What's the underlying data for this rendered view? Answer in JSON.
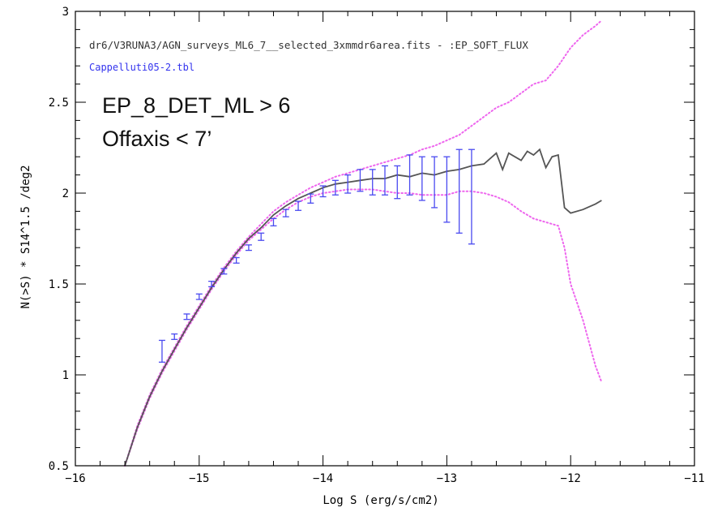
{
  "colors": {
    "axes": "#000000",
    "data_points": "#4a4af0",
    "model_line": "#555555",
    "envelope": "#ee66ee",
    "title_text": "#333333",
    "legend_text": "#3333ee"
  },
  "chart_data": {
    "type": "line",
    "title": "dr6/V3RUNA3/AGN_surveys_ML6_7__selected_3xmmdr6area.fits - :EP_SOFT_FLUX",
    "legend_entry": "Cappelluti05-2.tbl",
    "xlabel": "Log S (erg/s/cm2)",
    "ylabel": "N(>S) * S14^1.5 /deg2",
    "xlim": [
      -16,
      -11
    ],
    "ylim": [
      0.5,
      3
    ],
    "xticks": [
      -16,
      -15,
      -14,
      -13,
      -12,
      -11
    ],
    "xtick_labels": [
      "−16",
      "−15",
      "−14",
      "−13",
      "−12",
      "−11"
    ],
    "yticks": [
      0.5,
      1,
      1.5,
      2,
      2.5,
      3
    ],
    "ytick_labels": [
      "0.5",
      "1",
      "1.5",
      "2",
      "2.5",
      "3"
    ],
    "annotations": [
      "EP_8_DET_ML > 6",
      "Offaxis < 7’"
    ],
    "series": [
      {
        "name": "Cappelluti05-2.tbl",
        "style": "errorbar",
        "x": [
          -15.3,
          -15.2,
          -15.1,
          -15.0,
          -14.9,
          -14.8,
          -14.7,
          -14.6,
          -14.5,
          -14.4,
          -14.3,
          -14.2,
          -14.1,
          -14.0,
          -13.9,
          -13.8,
          -13.7,
          -13.6,
          -13.5,
          -13.4,
          -13.3,
          -13.2,
          -13.1,
          -13.0,
          -12.9,
          -12.8
        ],
        "y": [
          1.13,
          1.21,
          1.32,
          1.43,
          1.5,
          1.57,
          1.63,
          1.7,
          1.76,
          1.84,
          1.89,
          1.93,
          1.97,
          2.01,
          2.03,
          2.05,
          2.07,
          2.06,
          2.07,
          2.06,
          2.1,
          2.08,
          2.06,
          2.02,
          2.01,
          1.98
        ],
        "yerr": [
          0.06,
          0.015,
          0.015,
          0.015,
          0.015,
          0.015,
          0.015,
          0.015,
          0.02,
          0.02,
          0.02,
          0.025,
          0.025,
          0.03,
          0.04,
          0.05,
          0.06,
          0.07,
          0.08,
          0.09,
          0.11,
          0.12,
          0.14,
          0.18,
          0.23,
          0.26
        ]
      },
      {
        "name": "model",
        "style": "line",
        "x": [
          -15.6,
          -15.5,
          -15.4,
          -15.3,
          -15.2,
          -15.1,
          -15.0,
          -14.9,
          -14.8,
          -14.7,
          -14.6,
          -14.5,
          -14.4,
          -14.3,
          -14.2,
          -14.1,
          -14.0,
          -13.9,
          -13.8,
          -13.7,
          -13.6,
          -13.5,
          -13.4,
          -13.3,
          -13.2,
          -13.1,
          -13.0,
          -12.9,
          -12.8,
          -12.7,
          -12.6,
          -12.55,
          -12.5,
          -12.4,
          -12.35,
          -12.3,
          -12.25,
          -12.2,
          -12.15,
          -12.1,
          -12.05,
          -12.0,
          -11.9,
          -11.8,
          -11.75
        ],
        "y": [
          0.5,
          0.71,
          0.88,
          1.02,
          1.14,
          1.26,
          1.37,
          1.48,
          1.58,
          1.67,
          1.75,
          1.81,
          1.88,
          1.93,
          1.97,
          2.0,
          2.03,
          2.05,
          2.06,
          2.07,
          2.08,
          2.08,
          2.1,
          2.09,
          2.11,
          2.1,
          2.12,
          2.13,
          2.15,
          2.16,
          2.22,
          2.13,
          2.22,
          2.18,
          2.23,
          2.21,
          2.24,
          2.14,
          2.2,
          2.21,
          1.92,
          1.89,
          1.91,
          1.94,
          1.96
        ]
      },
      {
        "name": "upper envelope",
        "style": "dotted",
        "x": [
          -15.6,
          -15.5,
          -15.4,
          -15.3,
          -15.2,
          -15.1,
          -15.0,
          -14.9,
          -14.8,
          -14.7,
          -14.6,
          -14.5,
          -14.4,
          -14.3,
          -14.2,
          -14.1,
          -14.0,
          -13.9,
          -13.8,
          -13.7,
          -13.6,
          -13.5,
          -13.4,
          -13.3,
          -13.2,
          -13.1,
          -13.0,
          -12.9,
          -12.8,
          -12.7,
          -12.6,
          -12.5,
          -12.4,
          -12.3,
          -12.2,
          -12.1,
          -12.0,
          -11.9,
          -11.8,
          -11.75
        ],
        "y": [
          0.5,
          0.72,
          0.89,
          1.03,
          1.15,
          1.27,
          1.38,
          1.49,
          1.59,
          1.68,
          1.76,
          1.83,
          1.9,
          1.95,
          1.99,
          2.03,
          2.06,
          2.09,
          2.11,
          2.13,
          2.15,
          2.17,
          2.19,
          2.21,
          2.24,
          2.26,
          2.29,
          2.32,
          2.37,
          2.42,
          2.47,
          2.5,
          2.55,
          2.6,
          2.62,
          2.7,
          2.8,
          2.87,
          2.92,
          2.95
        ]
      },
      {
        "name": "lower envelope",
        "style": "dotted",
        "x": [
          -15.6,
          -15.5,
          -15.4,
          -15.3,
          -15.2,
          -15.1,
          -15.0,
          -14.9,
          -14.8,
          -14.7,
          -14.6,
          -14.5,
          -14.4,
          -14.3,
          -14.2,
          -14.1,
          -14.0,
          -13.9,
          -13.8,
          -13.7,
          -13.6,
          -13.5,
          -13.4,
          -13.3,
          -13.2,
          -13.1,
          -13.0,
          -12.9,
          -12.8,
          -12.7,
          -12.6,
          -12.5,
          -12.4,
          -12.3,
          -12.2,
          -12.15,
          -12.1,
          -12.05,
          -12.0,
          -11.9,
          -11.8,
          -11.75
        ],
        "y": [
          0.5,
          0.7,
          0.87,
          1.01,
          1.13,
          1.25,
          1.36,
          1.47,
          1.57,
          1.66,
          1.74,
          1.8,
          1.86,
          1.91,
          1.95,
          1.98,
          2.0,
          2.01,
          2.02,
          2.02,
          2.02,
          2.01,
          2.0,
          2.0,
          1.99,
          1.99,
          1.99,
          2.01,
          2.01,
          2.0,
          1.98,
          1.95,
          1.9,
          1.86,
          1.84,
          1.83,
          1.82,
          1.7,
          1.5,
          1.3,
          1.05,
          0.96
        ]
      }
    ]
  }
}
